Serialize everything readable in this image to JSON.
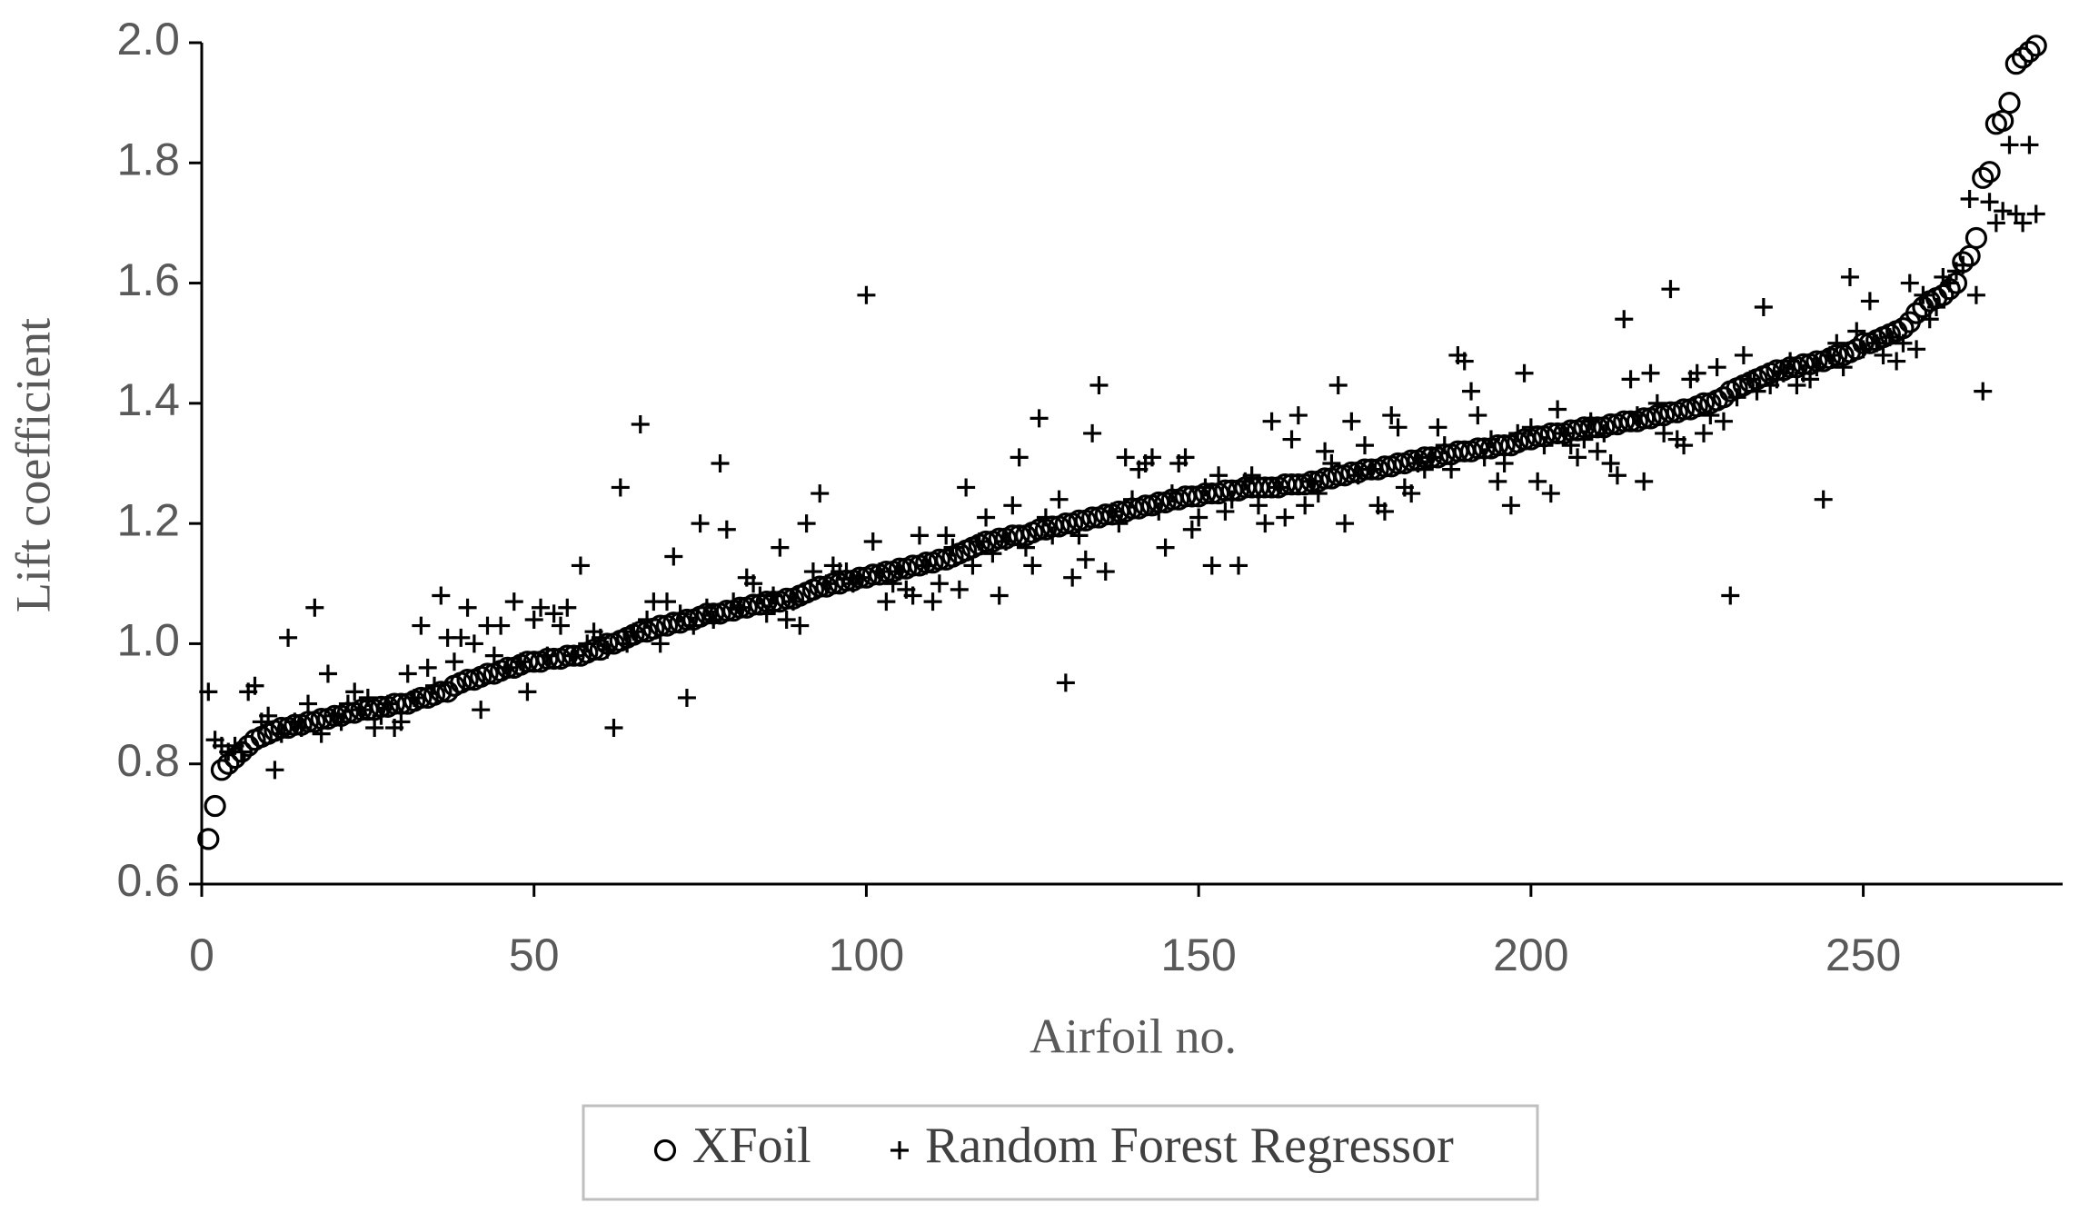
{
  "chart_data": {
    "type": "scatter",
    "x_label": "Airfoil no.",
    "y_label": "Lift coefficient",
    "xlim": [
      0,
      280
    ],
    "xticks": [
      0,
      50,
      100,
      150,
      200,
      250
    ],
    "ylim": [
      0.6,
      2.0
    ],
    "yticks": [
      {
        "value": 0.6,
        "label": "0.6"
      },
      {
        "value": 0.8,
        "label": "0.8"
      },
      {
        "value": 1.0,
        "label": "1.0"
      },
      {
        "value": 1.2,
        "label": "1.2"
      },
      {
        "value": 1.4,
        "label": "1.4"
      },
      {
        "value": 1.6,
        "label": "1.6"
      },
      {
        "value": 1.8,
        "label": "1.8"
      },
      {
        "value": 2.0,
        "label": "2.0"
      }
    ],
    "grid": false,
    "legend": "bottom",
    "x": [
      1,
      2,
      3,
      4,
      5,
      6,
      7,
      8,
      9,
      10,
      11,
      12,
      13,
      14,
      15,
      16,
      17,
      18,
      19,
      20,
      21,
      22,
      23,
      24,
      25,
      26,
      27,
      28,
      29,
      30,
      31,
      32,
      33,
      34,
      35,
      36,
      37,
      38,
      39,
      40,
      41,
      42,
      43,
      44,
      45,
      46,
      47,
      48,
      49,
      50,
      51,
      52,
      53,
      54,
      55,
      56,
      57,
      58,
      59,
      60,
      61,
      62,
      63,
      64,
      65,
      66,
      67,
      68,
      69,
      70,
      71,
      72,
      73,
      74,
      75,
      76,
      77,
      78,
      79,
      80,
      81,
      82,
      83,
      84,
      85,
      86,
      87,
      88,
      89,
      90,
      91,
      92,
      93,
      94,
      95,
      96,
      97,
      98,
      99,
      100,
      101,
      102,
      103,
      104,
      105,
      106,
      107,
      108,
      109,
      110,
      111,
      112,
      113,
      114,
      115,
      116,
      117,
      118,
      119,
      120,
      121,
      122,
      123,
      124,
      125,
      126,
      127,
      128,
      129,
      130,
      131,
      132,
      133,
      134,
      135,
      136,
      137,
      138,
      139,
      140,
      141,
      142,
      143,
      144,
      145,
      146,
      147,
      148,
      149,
      150,
      151,
      152,
      153,
      154,
      155,
      156,
      157,
      158,
      159,
      160,
      161,
      162,
      163,
      164,
      165,
      166,
      167,
      168,
      169,
      170,
      171,
      172,
      173,
      174,
      175,
      176,
      177,
      178,
      179,
      180,
      181,
      182,
      183,
      184,
      185,
      186,
      187,
      188,
      189,
      190,
      191,
      192,
      193,
      194,
      195,
      196,
      197,
      198,
      199,
      200,
      201,
      202,
      203,
      204,
      205,
      206,
      207,
      208,
      209,
      210,
      211,
      212,
      213,
      214,
      215,
      216,
      217,
      218,
      219,
      220,
      221,
      222,
      223,
      224,
      225,
      226,
      227,
      228,
      229,
      230,
      231,
      232,
      233,
      234,
      235,
      236,
      237,
      238,
      239,
      240,
      241,
      242,
      243,
      244,
      245,
      246,
      247,
      248,
      249,
      250,
      251,
      252,
      253,
      254,
      255,
      256,
      257,
      258,
      259,
      260,
      261,
      262,
      263,
      264,
      265,
      266,
      267,
      268,
      269,
      270,
      271,
      272,
      273,
      274,
      275,
      276
    ],
    "series": [
      {
        "name": "XFoil",
        "marker": "circle",
        "color": "#000000",
        "values": [
          0.675,
          0.73,
          0.79,
          0.8,
          0.81,
          0.82,
          0.83,
          0.84,
          0.845,
          0.85,
          0.855,
          0.86,
          0.86,
          0.865,
          0.865,
          0.87,
          0.87,
          0.875,
          0.875,
          0.88,
          0.88,
          0.885,
          0.885,
          0.89,
          0.89,
          0.89,
          0.895,
          0.895,
          0.9,
          0.9,
          0.9,
          0.905,
          0.91,
          0.91,
          0.915,
          0.92,
          0.92,
          0.93,
          0.935,
          0.94,
          0.94,
          0.945,
          0.95,
          0.95,
          0.955,
          0.96,
          0.96,
          0.965,
          0.97,
          0.97,
          0.97,
          0.975,
          0.975,
          0.975,
          0.98,
          0.98,
          0.98,
          0.985,
          0.99,
          0.99,
          1.0,
          1.0,
          1.005,
          1.01,
          1.015,
          1.02,
          1.02,
          1.025,
          1.03,
          1.03,
          1.035,
          1.035,
          1.04,
          1.04,
          1.045,
          1.05,
          1.05,
          1.05,
          1.055,
          1.055,
          1.06,
          1.06,
          1.065,
          1.065,
          1.07,
          1.07,
          1.07,
          1.075,
          1.075,
          1.08,
          1.085,
          1.09,
          1.095,
          1.095,
          1.1,
          1.1,
          1.105,
          1.105,
          1.11,
          1.11,
          1.115,
          1.115,
          1.12,
          1.12,
          1.125,
          1.125,
          1.13,
          1.13,
          1.135,
          1.135,
          1.14,
          1.14,
          1.145,
          1.15,
          1.155,
          1.16,
          1.165,
          1.17,
          1.17,
          1.175,
          1.175,
          1.18,
          1.18,
          1.18,
          1.185,
          1.19,
          1.19,
          1.195,
          1.195,
          1.2,
          1.2,
          1.205,
          1.205,
          1.21,
          1.21,
          1.215,
          1.215,
          1.22,
          1.22,
          1.225,
          1.225,
          1.23,
          1.23,
          1.235,
          1.235,
          1.24,
          1.24,
          1.245,
          1.245,
          1.245,
          1.25,
          1.25,
          1.25,
          1.255,
          1.255,
          1.255,
          1.26,
          1.26,
          1.26,
          1.26,
          1.26,
          1.26,
          1.265,
          1.265,
          1.265,
          1.265,
          1.27,
          1.27,
          1.275,
          1.275,
          1.28,
          1.28,
          1.285,
          1.285,
          1.29,
          1.29,
          1.29,
          1.295,
          1.295,
          1.3,
          1.3,
          1.305,
          1.305,
          1.31,
          1.31,
          1.31,
          1.315,
          1.315,
          1.32,
          1.32,
          1.32,
          1.325,
          1.325,
          1.325,
          1.33,
          1.33,
          1.33,
          1.335,
          1.34,
          1.34,
          1.345,
          1.345,
          1.35,
          1.35,
          1.35,
          1.355,
          1.355,
          1.36,
          1.36,
          1.36,
          1.36,
          1.365,
          1.365,
          1.37,
          1.37,
          1.37,
          1.375,
          1.375,
          1.38,
          1.38,
          1.385,
          1.385,
          1.39,
          1.39,
          1.395,
          1.4,
          1.4,
          1.405,
          1.41,
          1.42,
          1.425,
          1.43,
          1.435,
          1.44,
          1.445,
          1.45,
          1.455,
          1.455,
          1.46,
          1.46,
          1.465,
          1.465,
          1.47,
          1.47,
          1.475,
          1.48,
          1.48,
          1.485,
          1.49,
          1.5,
          1.5,
          1.505,
          1.51,
          1.515,
          1.52,
          1.525,
          1.535,
          1.55,
          1.56,
          1.57,
          1.575,
          1.58,
          1.59,
          1.6,
          1.635,
          1.645,
          1.675,
          1.775,
          1.785,
          1.865,
          1.87,
          1.9,
          1.965,
          1.975,
          1.985,
          1.995
        ]
      },
      {
        "name": "Random Forest Regressor",
        "marker": "plus",
        "color": "#000000",
        "values": [
          0.92,
          0.84,
          0.83,
          0.82,
          0.83,
          0.82,
          0.92,
          0.93,
          0.87,
          0.88,
          0.79,
          0.85,
          1.01,
          0.87,
          0.86,
          0.9,
          1.06,
          0.85,
          0.95,
          0.88,
          0.87,
          0.9,
          0.92,
          0.89,
          0.91,
          0.86,
          0.88,
          0.9,
          0.86,
          0.87,
          0.95,
          0.91,
          1.03,
          0.96,
          0.93,
          1.08,
          1.01,
          0.97,
          1.01,
          1.06,
          1.0,
          0.89,
          1.03,
          0.98,
          1.03,
          0.96,
          1.07,
          0.97,
          0.92,
          1.04,
          1.06,
          0.98,
          1.05,
          1.03,
          1.06,
          0.98,
          1.13,
          1.0,
          1.02,
          1.01,
          0.99,
          0.86,
          1.26,
          1.0,
          1.02,
          1.365,
          1.04,
          1.07,
          1.0,
          1.07,
          1.145,
          1.05,
          0.91,
          1.03,
          1.2,
          1.06,
          1.04,
          1.3,
          1.19,
          1.07,
          1.06,
          1.11,
          1.1,
          1.08,
          1.05,
          1.08,
          1.16,
          1.04,
          1.07,
          1.03,
          1.2,
          1.12,
          1.25,
          1.1,
          1.13,
          1.12,
          1.12,
          1.1,
          1.11,
          1.58,
          1.17,
          1.12,
          1.07,
          1.1,
          1.12,
          1.09,
          1.08,
          1.18,
          1.13,
          1.07,
          1.1,
          1.18,
          1.16,
          1.09,
          1.26,
          1.13,
          1.17,
          1.21,
          1.15,
          1.08,
          1.17,
          1.23,
          1.31,
          1.16,
          1.13,
          1.375,
          1.21,
          1.18,
          1.24,
          0.935,
          1.11,
          1.18,
          1.14,
          1.35,
          1.43,
          1.12,
          1.22,
          1.2,
          1.31,
          1.24,
          1.29,
          1.3,
          1.31,
          1.22,
          1.16,
          1.25,
          1.3,
          1.31,
          1.19,
          1.21,
          1.26,
          1.13,
          1.28,
          1.22,
          1.24,
          1.13,
          1.27,
          1.28,
          1.23,
          1.2,
          1.37,
          1.26,
          1.21,
          1.34,
          1.38,
          1.23,
          1.27,
          1.25,
          1.32,
          1.3,
          1.43,
          1.2,
          1.37,
          1.28,
          1.33,
          1.29,
          1.23,
          1.22,
          1.38,
          1.36,
          1.26,
          1.25,
          1.3,
          1.29,
          1.31,
          1.36,
          1.33,
          1.29,
          1.48,
          1.47,
          1.42,
          1.38,
          1.31,
          1.34,
          1.27,
          1.3,
          1.23,
          1.35,
          1.45,
          1.36,
          1.27,
          1.33,
          1.25,
          1.39,
          1.35,
          1.33,
          1.31,
          1.34,
          1.37,
          1.32,
          1.35,
          1.3,
          1.28,
          1.54,
          1.44,
          1.38,
          1.27,
          1.45,
          1.4,
          1.35,
          1.59,
          1.34,
          1.33,
          1.44,
          1.45,
          1.35,
          1.38,
          1.46,
          1.37,
          1.08,
          1.41,
          1.48,
          1.44,
          1.42,
          1.56,
          1.43,
          1.44,
          1.45,
          1.47,
          1.43,
          1.45,
          1.44,
          1.46,
          1.24,
          1.48,
          1.5,
          1.46,
          1.61,
          1.52,
          1.49,
          1.57,
          1.5,
          1.48,
          1.51,
          1.47,
          1.5,
          1.6,
          1.49,
          1.58,
          1.54,
          1.56,
          1.61,
          1.6,
          1.62,
          1.63,
          1.74,
          1.58,
          1.42,
          1.735,
          1.7,
          1.72,
          1.83,
          1.715,
          1.7,
          1.83,
          1.715
        ]
      }
    ]
  }
}
